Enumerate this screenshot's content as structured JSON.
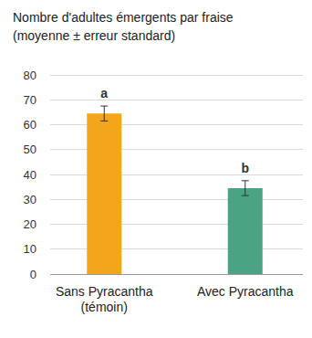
{
  "chart_data": {
    "type": "bar",
    "title": "Nombre d'adultes émergents par fraise",
    "subtitle": "(moyenne ± erreur standard)",
    "categories": [
      "Sans Pyracantha\n(témoin)",
      "Avec Pyracantha"
    ],
    "values": [
      64.5,
      34.5
    ],
    "errors": [
      3,
      3
    ],
    "annotations": [
      "a",
      "b"
    ],
    "colors": [
      "#f3a51c",
      "#4aa383"
    ],
    "ylim": [
      0,
      80
    ],
    "yticks": [
      0,
      10,
      20,
      30,
      40,
      50,
      60,
      70,
      80
    ],
    "grid": true
  }
}
